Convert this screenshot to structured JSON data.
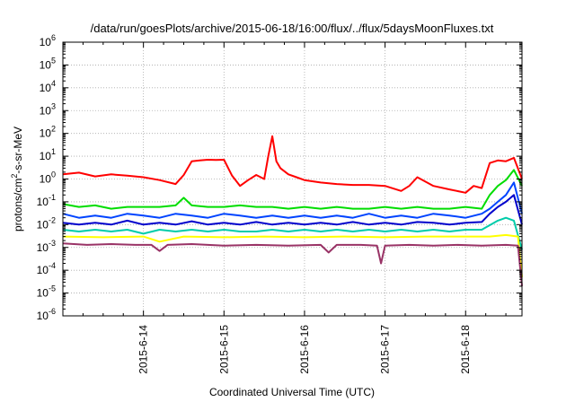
{
  "chart_data": {
    "type": "line",
    "title": "/data/run/goesPlots/archive/2015-06-18/16:00/flux/../flux/5daysMoonFluxes.txt",
    "xlabel": "Coordinated Universal Time (UTC)",
    "ylabel": {
      "prefix": "protons/cm",
      "exp": "2",
      "suffix": "-s-sr-MeV"
    },
    "x_unit": "days since 2015-06-13 00:00 UTC",
    "xlim": [
      0.0,
      5.7
    ],
    "x_ticks": [
      {
        "x": 1,
        "label": "2015-6-14"
      },
      {
        "x": 2,
        "label": "2015-6-15"
      },
      {
        "x": 3,
        "label": "2015-6-16"
      },
      {
        "x": 4,
        "label": "2015-6-17"
      },
      {
        "x": 5,
        "label": "2015-6-18"
      }
    ],
    "y_scale": "log",
    "ylim": [
      1e-06,
      1000000.0
    ],
    "y_ticks": [
      {
        "e": -6,
        "label": "10",
        "exp": "-6"
      },
      {
        "e": -5,
        "label": "10",
        "exp": "-5"
      },
      {
        "e": -4,
        "label": "10",
        "exp": "-4"
      },
      {
        "e": -3,
        "label": "10",
        "exp": "-3"
      },
      {
        "e": -2,
        "label": "10",
        "exp": "-2"
      },
      {
        "e": -1,
        "label": "10",
        "exp": "-1"
      },
      {
        "e": 0,
        "label": "10",
        "exp": "0"
      },
      {
        "e": 1,
        "label": "10",
        "exp": "1"
      },
      {
        "e": 2,
        "label": "10",
        "exp": "2"
      },
      {
        "e": 3,
        "label": "10",
        "exp": "3"
      },
      {
        "e": 4,
        "label": "10",
        "exp": "4"
      },
      {
        "e": 5,
        "label": "10",
        "exp": "5"
      },
      {
        "e": 6,
        "label": "10",
        "exp": "6"
      }
    ],
    "grid": true,
    "legend": "none",
    "series": [
      {
        "color": "#ff0000",
        "x": [
          0,
          0.2,
          0.4,
          0.6,
          0.8,
          1.0,
          1.2,
          1.4,
          1.5,
          1.6,
          1.7,
          1.8,
          1.9,
          2.0,
          2.1,
          2.2,
          2.3,
          2.4,
          2.5,
          2.55,
          2.6,
          2.65,
          2.7,
          2.8,
          2.9,
          3.0,
          3.2,
          3.4,
          3.6,
          3.8,
          4.0,
          4.2,
          4.3,
          4.4,
          4.6,
          4.8,
          5.0,
          5.1,
          5.2,
          5.3,
          5.4,
          5.5,
          5.6,
          5.7
        ],
        "y": [
          1.6,
          1.9,
          1.3,
          1.6,
          1.4,
          1.2,
          0.9,
          0.6,
          1.5,
          6,
          6.5,
          7,
          6.8,
          7,
          1.4,
          0.5,
          0.9,
          1.5,
          1.0,
          10,
          75,
          6,
          3,
          1.6,
          1.2,
          0.9,
          0.7,
          0.6,
          0.55,
          0.55,
          0.5,
          0.3,
          0.5,
          1.2,
          0.5,
          0.35,
          0.25,
          0.5,
          0.4,
          5,
          6.5,
          6,
          8.5,
          1.0
        ]
      },
      {
        "color": "#00dd00",
        "x": [
          0,
          0.2,
          0.4,
          0.6,
          0.8,
          1.0,
          1.2,
          1.4,
          1.5,
          1.6,
          1.8,
          2.0,
          2.2,
          2.4,
          2.6,
          2.8,
          3.0,
          3.2,
          3.4,
          3.6,
          3.8,
          4.0,
          4.2,
          4.4,
          4.6,
          4.8,
          5.0,
          5.2,
          5.3,
          5.4,
          5.5,
          5.6,
          5.7
        ],
        "y": [
          0.08,
          0.06,
          0.07,
          0.05,
          0.06,
          0.06,
          0.06,
          0.07,
          0.15,
          0.07,
          0.06,
          0.06,
          0.07,
          0.06,
          0.06,
          0.05,
          0.06,
          0.05,
          0.06,
          0.05,
          0.05,
          0.06,
          0.05,
          0.06,
          0.05,
          0.05,
          0.06,
          0.05,
          0.2,
          0.5,
          0.9,
          2.5,
          0.5
        ]
      },
      {
        "color": "#0044ff",
        "x": [
          0,
          0.2,
          0.4,
          0.6,
          0.8,
          1.0,
          1.2,
          1.4,
          1.6,
          1.8,
          2.0,
          2.2,
          2.4,
          2.6,
          2.8,
          3.0,
          3.2,
          3.4,
          3.6,
          3.8,
          4.0,
          4.2,
          4.4,
          4.6,
          4.8,
          5.0,
          5.2,
          5.3,
          5.4,
          5.5,
          5.6,
          5.7
        ],
        "y": [
          0.03,
          0.02,
          0.025,
          0.02,
          0.03,
          0.025,
          0.02,
          0.03,
          0.025,
          0.02,
          0.03,
          0.025,
          0.02,
          0.025,
          0.02,
          0.025,
          0.02,
          0.025,
          0.02,
          0.03,
          0.02,
          0.025,
          0.02,
          0.03,
          0.025,
          0.02,
          0.03,
          0.05,
          0.1,
          0.2,
          0.7,
          0.03
        ]
      },
      {
        "color": "#0000cc",
        "x": [
          0,
          0.2,
          0.4,
          0.6,
          0.8,
          1.0,
          1.2,
          1.4,
          1.6,
          1.8,
          2.0,
          2.2,
          2.4,
          2.6,
          2.8,
          3.0,
          3.2,
          3.4,
          3.6,
          3.8,
          4.0,
          4.2,
          4.4,
          4.6,
          4.8,
          5.0,
          5.2,
          5.3,
          5.4,
          5.5,
          5.6,
          5.7
        ],
        "y": [
          0.012,
          0.01,
          0.012,
          0.01,
          0.015,
          0.01,
          0.012,
          0.01,
          0.014,
          0.01,
          0.012,
          0.01,
          0.013,
          0.01,
          0.012,
          0.01,
          0.012,
          0.01,
          0.013,
          0.01,
          0.012,
          0.01,
          0.013,
          0.012,
          0.01,
          0.012,
          0.013,
          0.03,
          0.06,
          0.1,
          0.2,
          0.01
        ]
      },
      {
        "color": "#00ccaa",
        "x": [
          0,
          0.2,
          0.4,
          0.6,
          0.8,
          1.0,
          1.2,
          1.4,
          1.6,
          1.8,
          2.0,
          2.2,
          2.4,
          2.6,
          2.8,
          3.0,
          3.2,
          3.4,
          3.6,
          3.8,
          4.0,
          4.2,
          4.4,
          4.6,
          4.8,
          5.0,
          5.2,
          5.4,
          5.5,
          5.6,
          5.7
        ],
        "y": [
          0.006,
          0.005,
          0.006,
          0.005,
          0.006,
          0.004,
          0.006,
          0.005,
          0.006,
          0.005,
          0.006,
          0.005,
          0.005,
          0.006,
          0.005,
          0.006,
          0.005,
          0.006,
          0.005,
          0.006,
          0.005,
          0.006,
          0.005,
          0.006,
          0.005,
          0.006,
          0.006,
          0.015,
          0.02,
          0.015,
          0.0008
        ]
      },
      {
        "color": "#ffff00",
        "x": [
          0,
          0.5,
          1.0,
          1.2,
          1.5,
          2.0,
          2.5,
          3.0,
          3.5,
          4.0,
          4.5,
          5.0,
          5.3,
          5.5,
          5.65,
          5.7
        ],
        "y": [
          0.003,
          0.0028,
          0.003,
          0.0018,
          0.003,
          0.0028,
          0.003,
          0.0028,
          0.003,
          0.0028,
          0.003,
          0.003,
          0.003,
          0.0035,
          0.003,
          5e-05
        ]
      },
      {
        "color": "#993366",
        "x": [
          0,
          0.3,
          0.6,
          0.9,
          1.1,
          1.2,
          1.3,
          1.6,
          2.0,
          2.4,
          2.8,
          3.2,
          3.3,
          3.4,
          3.7,
          3.9,
          3.95,
          4.0,
          4.3,
          4.6,
          4.9,
          5.2,
          5.5,
          5.65,
          5.7
        ],
        "y": [
          0.0015,
          0.0013,
          0.0014,
          0.0013,
          0.0013,
          0.0007,
          0.0013,
          0.0014,
          0.0012,
          0.0013,
          0.0012,
          0.0013,
          0.0006,
          0.0013,
          0.0013,
          0.0012,
          0.0002,
          0.0012,
          0.0013,
          0.0012,
          0.0013,
          0.0012,
          0.0013,
          0.0012,
          2e-05
        ]
      }
    ]
  }
}
